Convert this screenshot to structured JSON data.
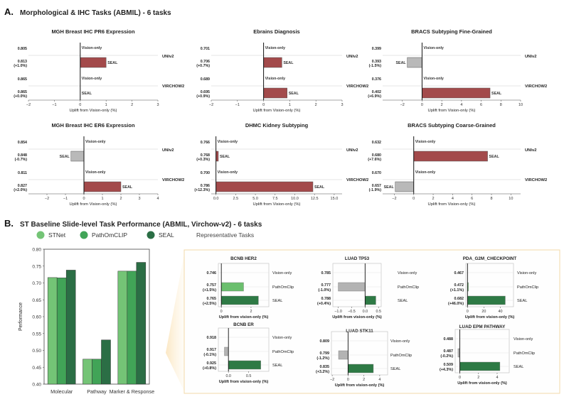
{
  "sectionA": {
    "letter": "A.",
    "title": "Morphological & IHC Tasks (ABMIL) - 6 tasks",
    "xlabel": "Uplift from Vision-only (%)",
    "model_labels": [
      "UNIv2",
      "VIRCHOW2"
    ],
    "vision_label": "Vision-only",
    "seal_label": "SEAL"
  },
  "sectionB": {
    "letter": "B.",
    "title": "ST Baseline Slide-level Task Performance  (ABMIL, Virchow-v2) - 6 tasks",
    "legend": [
      {
        "label": "STNet",
        "color": "#74c476"
      },
      {
        "label": "PathOmCLIP",
        "color": "#41a457"
      },
      {
        "label": "SEAL",
        "color": "#2b6e45"
      }
    ],
    "legend_note": "Representative Tasks",
    "xlabel": "Uplift from vision-only (%)",
    "row_labels": [
      "Vision-only",
      "PathOmClip",
      "SEAL"
    ]
  },
  "chart_data": [
    {
      "id": "a1",
      "type": "bar",
      "orientation": "horizontal",
      "title": "MGH Breast IHC PR6 Expression",
      "xlim": [
        -2,
        3
      ],
      "xticks": [
        -2,
        -1,
        0,
        1,
        2,
        3
      ],
      "xlabel": "Uplift from Vision-only (%)",
      "models": [
        {
          "name": "UNIv2",
          "vision": {
            "value": "0.805",
            "uplift": 0
          },
          "seal": {
            "value": "0.813",
            "change": "(+1.0%)",
            "uplift": 1.0
          }
        },
        {
          "name": "VIRCHOW2",
          "vision": {
            "value": "0.865",
            "uplift": 0
          },
          "seal": {
            "value": "0.865",
            "change": "(+0.0%)",
            "uplift": 0.0
          }
        }
      ]
    },
    {
      "id": "a2",
      "type": "bar",
      "orientation": "horizontal",
      "title": "Ebrains Diagnosis",
      "xlim": [
        -2,
        3
      ],
      "xticks": [
        -2,
        -1,
        0,
        1,
        2,
        3
      ],
      "xlabel": "Uplift from Vision-only (%)",
      "models": [
        {
          "name": "UNIv2",
          "vision": {
            "value": "0.701",
            "uplift": 0
          },
          "seal": {
            "value": "0.706",
            "change": "(+0.7%)",
            "uplift": 0.7
          }
        },
        {
          "name": "VIRCHOW2",
          "vision": {
            "value": "0.689",
            "uplift": 0
          },
          "seal": {
            "value": "0.695",
            "change": "(+0.9%)",
            "uplift": 0.9
          }
        }
      ]
    },
    {
      "id": "a3",
      "type": "bar",
      "orientation": "horizontal",
      "title": "BRACS Subtyping Fine-Grained",
      "xlim": [
        -4,
        10
      ],
      "xticks": [
        -2,
        0,
        2,
        4,
        6,
        8,
        10
      ],
      "xlabel": "Uplift from Vision-only (%)",
      "models": [
        {
          "name": "UNIv2",
          "vision": {
            "value": "0.399",
            "uplift": 0
          },
          "seal": {
            "value": "0.393",
            "change": "(-1.5%)",
            "uplift": -1.5
          }
        },
        {
          "name": "VIRCHOW2",
          "vision": {
            "value": "0.376",
            "uplift": 0
          },
          "seal": {
            "value": "0.402",
            "change": "(+6.9%)",
            "uplift": 6.9
          }
        }
      ]
    },
    {
      "id": "a4",
      "type": "bar",
      "orientation": "horizontal",
      "title": "MGH Breast IHC ER6 Expression",
      "xlim": [
        -3,
        4
      ],
      "xticks": [
        -2,
        -1,
        0,
        1,
        2,
        3,
        4
      ],
      "xlabel": "Uplift from Vision-only (%)",
      "models": [
        {
          "name": "UNIv2",
          "vision": {
            "value": "0.854",
            "uplift": 0
          },
          "seal": {
            "value": "0.848",
            "change": "(-0.7%)",
            "uplift": -0.7
          }
        },
        {
          "name": "VIRCHOW2",
          "vision": {
            "value": "0.811",
            "uplift": 0
          },
          "seal": {
            "value": "0.827",
            "change": "(+2.0%)",
            "uplift": 2.0
          }
        }
      ]
    },
    {
      "id": "a5",
      "type": "bar",
      "orientation": "horizontal",
      "title": "DHMC Kidney Subtyping",
      "xlim": [
        -0.6,
        16
      ],
      "xticks": [
        0,
        2.5,
        5,
        7.5,
        10,
        12.5,
        15
      ],
      "xticklabels": [
        "0.0",
        "2.5",
        "5.0",
        "7.5",
        "10.0",
        "12.5",
        "15.0"
      ],
      "xlabel": "Uplift from Vision-only (%)",
      "models": [
        {
          "name": "UNIv2",
          "vision": {
            "value": "0.766",
            "uplift": 0
          },
          "seal": {
            "value": "0.768",
            "change": "(+0.3%)",
            "uplift": 0.3
          }
        },
        {
          "name": "VIRCHOW2",
          "vision": {
            "value": "0.700",
            "uplift": 0
          },
          "seal": {
            "value": "0.786",
            "change": "(+12.3%)",
            "uplift": 12.3
          }
        }
      ]
    },
    {
      "id": "a6",
      "type": "bar",
      "orientation": "horizontal",
      "title": "BRACS Subtyping Coarse-Grained",
      "xlim": [
        -3.2,
        11
      ],
      "xticks": [
        -2,
        0,
        2,
        4,
        6,
        8,
        10
      ],
      "xlabel": "Uplift from Vision-only (%)",
      "models": [
        {
          "name": "UNIv2",
          "vision": {
            "value": "0.632",
            "uplift": 0
          },
          "seal": {
            "value": "0.680",
            "change": "(+7.6%)",
            "uplift": 7.6
          }
        },
        {
          "name": "VIRCHOW2",
          "vision": {
            "value": "0.670",
            "uplift": 0
          },
          "seal": {
            "value": "0.657",
            "change": "(-1.9%)",
            "uplift": -1.9
          }
        }
      ]
    },
    {
      "id": "b_main",
      "type": "bar",
      "orientation": "vertical",
      "categories": [
        "Molecular",
        "Pathway",
        "Marker & Response"
      ],
      "ylabel": "Performance",
      "ylim": [
        0.4,
        0.8
      ],
      "yticks": [
        0.4,
        0.45,
        0.5,
        0.55,
        0.6,
        0.65,
        0.7,
        0.75,
        0.8
      ],
      "series": [
        {
          "name": "STNet",
          "values": [
            0.716,
            0.474,
            0.735
          ]
        },
        {
          "name": "PathOmCLIP",
          "values": [
            0.715,
            0.474,
            0.735
          ]
        },
        {
          "name": "SEAL",
          "values": [
            0.738,
            0.531,
            0.761
          ]
        }
      ]
    },
    {
      "id": "b1",
      "type": "bar",
      "orientation": "horizontal",
      "title": "BCNB HER2",
      "xlim": [
        -0.2,
        3.2
      ],
      "xticks": [
        0,
        2
      ],
      "xlabel": "Uplift from vision-only (%)",
      "rows": [
        {
          "name": "Vision-only",
          "value": "0.746",
          "uplift": 0
        },
        {
          "name": "PathOmClip",
          "value": "0.757",
          "change": "(+1.5%)",
          "uplift": 1.5
        },
        {
          "name": "SEAL",
          "value": "0.765",
          "change": "(+2.5%)",
          "uplift": 2.5
        }
      ]
    },
    {
      "id": "b2",
      "type": "bar",
      "orientation": "horizontal",
      "title": "LUAD TP53",
      "xlim": [
        -1.2,
        0.6
      ],
      "xticks": [
        -1.0,
        -0.5,
        0.0,
        0.5
      ],
      "xticklabels": [
        "−1.0",
        "−0.5",
        "0.0",
        "0.5"
      ],
      "xlabel": "Uplift from vision-only (%)",
      "rows": [
        {
          "name": "Vision-only",
          "value": "0.785",
          "uplift": 0
        },
        {
          "name": "PathOmClip",
          "value": "0.777",
          "change": "(-1.0%)",
          "uplift": -1.0
        },
        {
          "name": "SEAL",
          "value": "0.788",
          "change": "(+0.4%)",
          "uplift": 0.4
        }
      ]
    },
    {
      "id": "b3",
      "type": "bar",
      "orientation": "horizontal",
      "title": "PDA_G2M_CHECKPOINT",
      "xlim": [
        -2,
        56
      ],
      "xticks": [
        0,
        20,
        40
      ],
      "xlabel": "Uplift from vision-only (%)",
      "rows": [
        {
          "name": "Vision-only",
          "value": "0.467",
          "uplift": 0
        },
        {
          "name": "PathOmClip",
          "value": "0.472",
          "change": "(+1.1%)",
          "uplift": 1.1
        },
        {
          "name": "SEAL",
          "value": "0.682",
          "change": "(+46.0%)",
          "uplift": 46.0
        }
      ]
    },
    {
      "id": "b4",
      "type": "bar",
      "orientation": "horizontal",
      "title": "BCNB ER",
      "xlim": [
        -0.25,
        1.0
      ],
      "xticks": [
        0,
        0.5
      ],
      "xticklabels": [
        "0.0",
        "0.5"
      ],
      "xlabel": "Uplift from vision-only (%)",
      "rows": [
        {
          "name": "Vision-only",
          "value": "0.918",
          "uplift": 0
        },
        {
          "name": "PathOmClip",
          "value": "0.917",
          "change": "(-0.1%)",
          "uplift": -0.1
        },
        {
          "name": "SEAL",
          "value": "0.925",
          "change": "(+0.8%)",
          "uplift": 0.8
        }
      ]
    },
    {
      "id": "b5",
      "type": "bar",
      "orientation": "horizontal",
      "title": "LUAD STK11",
      "xlim": [
        -2.1,
        5
      ],
      "xticks": [
        -2,
        0,
        2,
        4
      ],
      "xlabel": "Uplift from vision-only (%)",
      "rows": [
        {
          "name": "Vision-only",
          "value": "0.809",
          "uplift": 0
        },
        {
          "name": "PathOmClip",
          "value": "0.799",
          "change": "(-1.2%)",
          "uplift": -1.2
        },
        {
          "name": "SEAL",
          "value": "0.835",
          "change": "(+3.2%)",
          "uplift": 3.2
        }
      ]
    },
    {
      "id": "b6",
      "type": "bar",
      "orientation": "horizontal",
      "title": "LUAD EPM PATHWAY",
      "xlim": [
        -0.5,
        5.3
      ],
      "xticks": [
        0,
        2,
        4
      ],
      "xlabel": "Uplift from vision-only (%)",
      "rows": [
        {
          "name": "Vision-only",
          "value": "0.488",
          "uplift": 0
        },
        {
          "name": "PathOmClip",
          "value": "0.487",
          "change": "(-0.2%)",
          "uplift": -0.2
        },
        {
          "name": "SEAL",
          "value": "0.509",
          "change": "(+4.3%)",
          "uplift": 4.3
        }
      ]
    }
  ]
}
